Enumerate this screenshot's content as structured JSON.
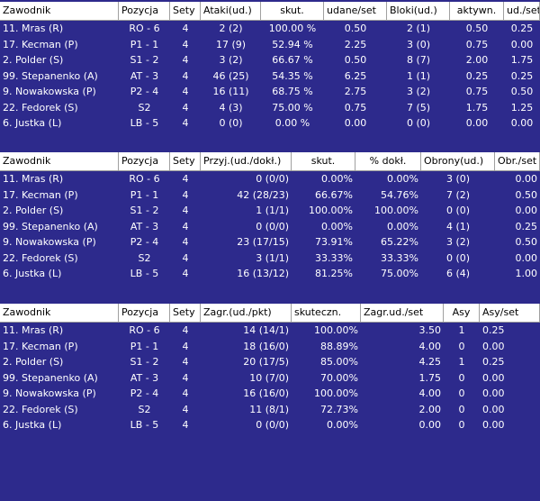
{
  "tables": [
    {
      "columns": [
        "Zawodnik",
        "Pozycja",
        "Sety",
        "Ataki(ud.)",
        "skut.",
        "udane/set",
        "Bloki(ud.)",
        "aktywn.",
        "ud./set"
      ],
      "rows": [
        [
          "11. Mras (R)",
          "RO - 6",
          "4",
          "2 (2)",
          "100.00 %",
          "0.50",
          "2 (1)",
          "0.50",
          "0.25"
        ],
        [
          "17. Kecman (P)",
          "P1 - 1",
          "4",
          "17 (9)",
          "52.94 %",
          "2.25",
          "3 (0)",
          "0.75",
          "0.00"
        ],
        [
          "2. Polder (S)",
          "S1 - 2",
          "4",
          "3 (2)",
          "66.67 %",
          "0.50",
          "8 (7)",
          "2.00",
          "1.75"
        ],
        [
          "99. Stepanenko (A)",
          "AT - 3",
          "4",
          "46 (25)",
          "54.35 %",
          "6.25",
          "1 (1)",
          "0.25",
          "0.25"
        ],
        [
          "9. Nowakowska (P)",
          "P2 - 4",
          "4",
          "16 (11)",
          "68.75 %",
          "2.75",
          "3 (2)",
          "0.75",
          "0.50"
        ],
        [
          "22. Fedorek (S)",
          "S2",
          "4",
          "4 (3)",
          "75.00 %",
          "0.75",
          "7 (5)",
          "1.75",
          "1.25"
        ],
        [
          "6. Justka (L)",
          "LB - 5",
          "4",
          "0 (0)",
          "0.00 %",
          "0.00",
          "0 (0)",
          "0.00",
          "0.00"
        ]
      ]
    },
    {
      "columns": [
        "Zawodnik",
        "Pozycja",
        "Sety",
        "Przyj.(ud./dokł.)",
        "skut.",
        "% dokł.",
        "Obrony(ud.)",
        "Obr./set"
      ],
      "rows": [
        [
          "11. Mras (R)",
          "RO - 6",
          "4",
          "0 (0/0)",
          "0.00%",
          "0.00%",
          "3 (0)",
          "0.00"
        ],
        [
          "17. Kecman (P)",
          "P1 - 1",
          "4",
          "42 (28/23)",
          "66.67%",
          "54.76%",
          "7 (2)",
          "0.50"
        ],
        [
          "2. Polder (S)",
          "S1 - 2",
          "4",
          "1 (1/1)",
          "100.00%",
          "100.00%",
          "0 (0)",
          "0.00"
        ],
        [
          "99. Stepanenko (A)",
          "AT - 3",
          "4",
          "0 (0/0)",
          "0.00%",
          "0.00%",
          "4 (1)",
          "0.25"
        ],
        [
          "9. Nowakowska (P)",
          "P2 - 4",
          "4",
          "23 (17/15)",
          "73.91%",
          "65.22%",
          "3 (2)",
          "0.50"
        ],
        [
          "22. Fedorek (S)",
          "S2",
          "4",
          "3 (1/1)",
          "33.33%",
          "33.33%",
          "0 (0)",
          "0.00"
        ],
        [
          "6. Justka (L)",
          "LB - 5",
          "4",
          "16 (13/12)",
          "81.25%",
          "75.00%",
          "6 (4)",
          "1.00"
        ]
      ]
    },
    {
      "columns": [
        "Zawodnik",
        "Pozycja",
        "Sety",
        "Zagr.(ud./pkt)",
        "skuteczn.",
        "Zagr.ud./set",
        "Asy",
        "Asy/set"
      ],
      "rows": [
        [
          "11. Mras (R)",
          "RO - 6",
          "4",
          "14 (14/1)",
          "100.00%",
          "3.50",
          "1",
          "0.25"
        ],
        [
          "17. Kecman (P)",
          "P1 - 1",
          "4",
          "18 (16/0)",
          "88.89%",
          "4.00",
          "0",
          "0.00"
        ],
        [
          "2. Polder (S)",
          "S1 - 2",
          "4",
          "20 (17/5)",
          "85.00%",
          "4.25",
          "1",
          "0.25"
        ],
        [
          "99. Stepanenko (A)",
          "AT - 3",
          "4",
          "10 (7/0)",
          "70.00%",
          "1.75",
          "0",
          "0.00"
        ],
        [
          "9. Nowakowska (P)",
          "P2 - 4",
          "4",
          "16 (16/0)",
          "100.00%",
          "4.00",
          "0",
          "0.00"
        ],
        [
          "22. Fedorek (S)",
          "S2",
          "4",
          "11 (8/1)",
          "72.73%",
          "2.00",
          "0",
          "0.00"
        ],
        [
          "6. Justka (L)",
          "LB - 5",
          "4",
          "0 (0/0)",
          "0.00%",
          "0.00",
          "0",
          "0.00"
        ]
      ]
    }
  ],
  "colors": {
    "background": "#2d2a8c",
    "header_bg": "#ffffff",
    "row_text": "#ffffff"
  }
}
